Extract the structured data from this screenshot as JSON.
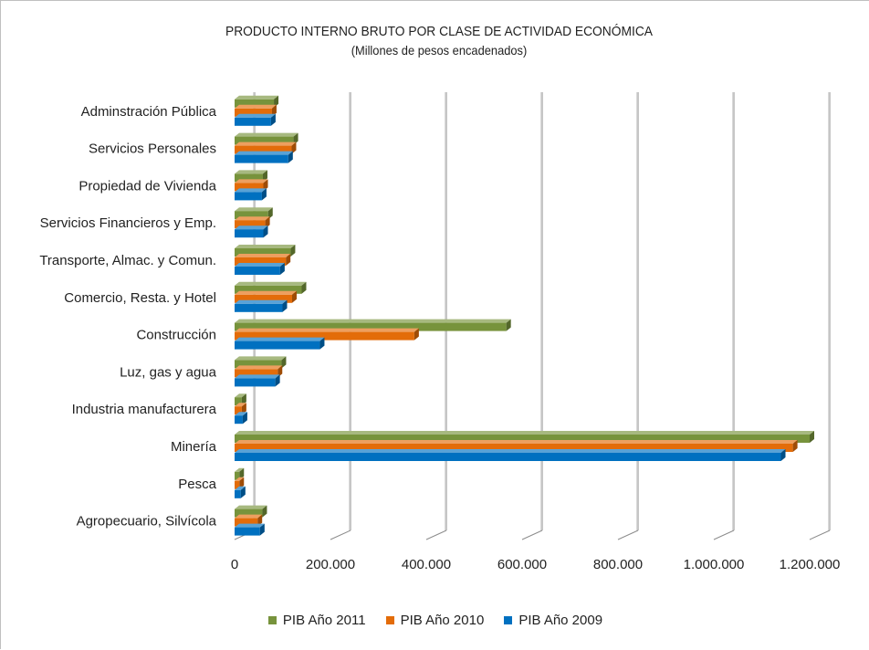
{
  "chart_data": {
    "type": "bar",
    "orientation": "horizontal",
    "title": "PRODUCTO INTERNO BRUTO POR CLASE DE ACTIVIDAD ECONÓMICA",
    "subtitle": "(Millones  de pesos encadenados)",
    "categories": [
      "Agropecuario, Silvícola",
      "Pesca",
      "Minería",
      "Industria manufacturera",
      "Luz, gas y agua",
      "Construcción",
      "Comercio, Resta. y Hotel",
      "Transporte, Almac. y Comun.",
      "Servicios Financieros y Emp.",
      "Propiedad de Vivienda",
      "Servicios Personales",
      "Adminstración Pública"
    ],
    "series": [
      {
        "name": "PIB Año 2011",
        "color": "#77933c",
        "values": [
          58000,
          10000,
          1200000,
          15000,
          98000,
          567000,
          140000,
          117000,
          70000,
          59000,
          123000,
          82000
        ]
      },
      {
        "name": "PIB Año 2010",
        "color": "#e36c09",
        "values": [
          48000,
          10000,
          1165000,
          15000,
          90000,
          375000,
          120000,
          107000,
          64000,
          60000,
          119000,
          78000
        ]
      },
      {
        "name": "PIB Año 2009",
        "color": "#0070c0",
        "values": [
          53000,
          13000,
          1140000,
          17000,
          85000,
          178000,
          100000,
          95000,
          60000,
          57000,
          112000,
          76000
        ]
      }
    ],
    "xlim": [
      0,
      1200000
    ],
    "xticks": [
      0,
      200000,
      400000,
      600000,
      800000,
      1000000,
      1200000
    ],
    "xtick_labels": [
      "0",
      "200.000",
      "400.000",
      "600.000",
      "800.000",
      "1.000.000",
      "1.200.000"
    ],
    "grid": true,
    "legend_position": "bottom"
  }
}
